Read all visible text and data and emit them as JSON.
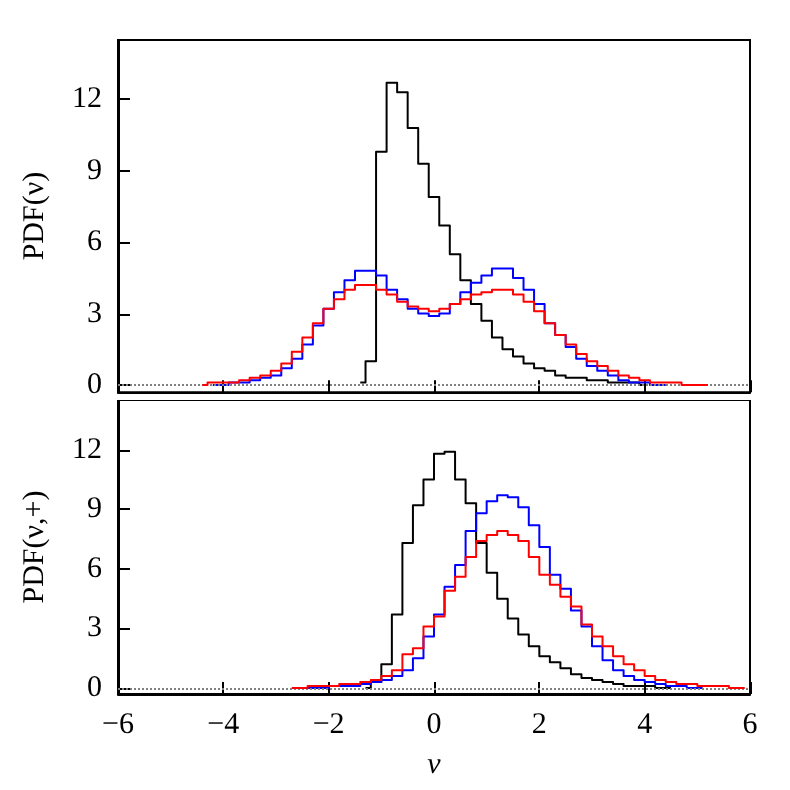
{
  "chart_data": [
    {
      "type": "step",
      "ylabel": "PDF(ν)",
      "xlim": [
        -6,
        6
      ],
      "xticks": [
        -6,
        -4,
        -2,
        0,
        2,
        4,
        6
      ],
      "ylim": [
        -0.3,
        14.5
      ],
      "yticks": [
        0,
        3,
        6,
        9,
        12
      ],
      "tick_labels": "y",
      "grid": false,
      "marker": "none",
      "line_style": "solid",
      "ref_lines": [
        {
          "axis": "y",
          "value": 0,
          "color": "#808080",
          "line_style": "dotted"
        }
      ],
      "series": [
        {
          "color": "#000000",
          "x": [
            -1.4,
            -1.2,
            -1.0,
            -0.8,
            -0.6,
            -0.4,
            -0.2,
            0.0,
            0.2,
            0.4,
            0.6,
            0.8,
            1.0,
            1.2,
            1.4,
            1.6,
            1.8,
            2.0,
            2.2,
            2.4,
            2.6,
            2.8,
            3.0,
            3.2,
            3.4,
            3.6,
            3.8,
            4.0
          ],
          "values": [
            0.1,
            1.0,
            9.8,
            12.7,
            12.3,
            10.8,
            9.3,
            7.9,
            6.7,
            5.5,
            4.4,
            3.4,
            2.7,
            2.0,
            1.5,
            1.2,
            0.9,
            0.7,
            0.6,
            0.4,
            0.3,
            0.3,
            0.2,
            0.2,
            0.1,
            0.1,
            0.1,
            0.0
          ]
        },
        {
          "color": "#0000ff",
          "x": [
            -4.2,
            -4.0,
            -3.8,
            -3.6,
            -3.4,
            -3.2,
            -3.0,
            -2.8,
            -2.6,
            -2.4,
            -2.2,
            -2.0,
            -1.8,
            -1.6,
            -1.4,
            -1.2,
            -1.0,
            -0.8,
            -0.6,
            -0.4,
            -0.2,
            0.0,
            0.2,
            0.4,
            0.6,
            0.8,
            1.0,
            1.2,
            1.4,
            1.6,
            1.8,
            2.0,
            2.2,
            2.4,
            2.6,
            2.8,
            3.0,
            3.2,
            3.4,
            3.6,
            3.8,
            4.0,
            4.2,
            4.4
          ],
          "values": [
            0.0,
            0.0,
            0.1,
            0.1,
            0.2,
            0.3,
            0.4,
            0.7,
            1.1,
            1.7,
            2.5,
            3.2,
            3.9,
            4.4,
            4.8,
            4.8,
            4.6,
            4.0,
            3.6,
            3.2,
            3.0,
            2.9,
            3.0,
            3.4,
            3.9,
            4.3,
            4.6,
            4.9,
            4.9,
            4.5,
            4.0,
            3.4,
            2.6,
            2.1,
            1.6,
            1.1,
            0.8,
            0.6,
            0.4,
            0.2,
            0.1,
            0.1,
            0.0,
            0.0
          ]
        },
        {
          "color": "#ff0000",
          "x": [
            -4.4,
            -4.2,
            -4.0,
            -3.8,
            -3.6,
            -3.4,
            -3.2,
            -3.0,
            -2.8,
            -2.6,
            -2.4,
            -2.2,
            -2.0,
            -1.8,
            -1.6,
            -1.4,
            -1.2,
            -1.0,
            -0.8,
            -0.6,
            -0.4,
            -0.2,
            0.0,
            0.2,
            0.4,
            0.6,
            0.8,
            1.0,
            1.2,
            1.4,
            1.6,
            1.8,
            2.0,
            2.2,
            2.4,
            2.6,
            2.8,
            3.0,
            3.2,
            3.4,
            3.6,
            3.8,
            4.0,
            4.2,
            4.4,
            4.6,
            4.8,
            5.0,
            5.2
          ],
          "values": [
            0.0,
            0.1,
            0.1,
            0.1,
            0.2,
            0.3,
            0.4,
            0.6,
            0.9,
            1.4,
            2.0,
            2.6,
            3.2,
            3.6,
            4.0,
            4.2,
            4.2,
            4.0,
            3.8,
            3.5,
            3.3,
            3.2,
            3.1,
            3.2,
            3.4,
            3.6,
            3.8,
            3.9,
            4.0,
            4.0,
            3.8,
            3.5,
            3.1,
            2.6,
            2.1,
            1.7,
            1.3,
            1.0,
            0.8,
            0.6,
            0.4,
            0.3,
            0.2,
            0.1,
            0.1,
            0.1,
            0.0,
            0.0,
            0.0
          ]
        }
      ]
    },
    {
      "type": "step",
      "ylabel": "PDF(ν,+)",
      "xlabel": "ν",
      "xlim": [
        -6,
        6
      ],
      "xticks": [
        -6,
        -4,
        -2,
        0,
        2,
        4,
        6
      ],
      "ylim": [
        -0.3,
        14.5
      ],
      "yticks": [
        0,
        3,
        6,
        9,
        12
      ],
      "grid": false,
      "marker": "none",
      "line_style": "solid",
      "ref_lines": [
        {
          "axis": "y",
          "value": 0,
          "color": "#808080",
          "line_style": "dotted"
        }
      ],
      "series": [
        {
          "color": "#000000",
          "x": [
            -1.3,
            -1.1,
            -0.9,
            -0.7,
            -0.5,
            -0.3,
            -0.1,
            0.1,
            0.3,
            0.5,
            0.7,
            0.9,
            1.1,
            1.3,
            1.5,
            1.7,
            1.9,
            2.1,
            2.3,
            2.5,
            2.7,
            2.9,
            3.1,
            3.3,
            3.5,
            3.7,
            3.9,
            4.1,
            4.3,
            4.5
          ],
          "values": [
            0.0,
            0.3,
            1.2,
            3.7,
            7.3,
            9.2,
            10.5,
            11.8,
            11.9,
            10.5,
            9.3,
            7.3,
            5.8,
            4.5,
            3.5,
            2.7,
            2.1,
            1.6,
            1.3,
            1.0,
            0.7,
            0.5,
            0.4,
            0.3,
            0.2,
            0.1,
            0.1,
            0.1,
            0.0,
            0.0
          ]
        },
        {
          "color": "#0000ff",
          "x": [
            -2.5,
            -2.3,
            -2.1,
            -1.9,
            -1.7,
            -1.5,
            -1.3,
            -1.1,
            -0.9,
            -0.7,
            -0.5,
            -0.3,
            -0.1,
            0.1,
            0.3,
            0.5,
            0.7,
            0.9,
            1.1,
            1.3,
            1.5,
            1.7,
            1.9,
            2.1,
            2.3,
            2.5,
            2.7,
            2.9,
            3.1,
            3.3,
            3.5,
            3.7,
            3.9,
            4.1,
            4.3,
            4.5,
            4.7,
            4.9,
            5.1
          ],
          "values": [
            0.0,
            0.0,
            0.0,
            0.1,
            0.1,
            0.1,
            0.2,
            0.3,
            0.4,
            0.6,
            0.9,
            1.5,
            2.6,
            3.7,
            5.1,
            6.2,
            7.9,
            8.8,
            9.4,
            9.7,
            9.6,
            9.1,
            8.2,
            7.1,
            5.7,
            5.0,
            3.9,
            3.1,
            2.1,
            1.4,
            0.9,
            0.6,
            0.4,
            0.3,
            0.2,
            0.1,
            0.1,
            0.0,
            0.0
          ]
        },
        {
          "color": "#ff0000",
          "x": [
            -2.7,
            -2.5,
            -2.3,
            -2.1,
            -1.9,
            -1.7,
            -1.5,
            -1.3,
            -1.1,
            -0.9,
            -0.7,
            -0.5,
            -0.3,
            -0.1,
            0.1,
            0.3,
            0.5,
            0.7,
            0.9,
            1.1,
            1.3,
            1.5,
            1.7,
            1.9,
            2.1,
            2.3,
            2.5,
            2.7,
            2.9,
            3.1,
            3.3,
            3.5,
            3.7,
            3.9,
            4.1,
            4.3,
            4.5,
            4.7,
            4.9,
            5.1,
            5.3,
            5.5,
            5.7,
            5.9
          ],
          "values": [
            0.0,
            0.0,
            0.1,
            0.1,
            0.1,
            0.2,
            0.2,
            0.3,
            0.4,
            0.6,
            0.9,
            1.7,
            2.0,
            3.1,
            3.6,
            4.9,
            5.6,
            6.6,
            7.4,
            7.7,
            7.9,
            7.7,
            7.4,
            6.6,
            5.7,
            5.2,
            4.6,
            4.1,
            3.2,
            2.6,
            2.1,
            1.6,
            1.2,
            0.9,
            0.6,
            0.4,
            0.3,
            0.2,
            0.2,
            0.1,
            0.1,
            0.1,
            0.0,
            0.0
          ]
        }
      ]
    }
  ]
}
